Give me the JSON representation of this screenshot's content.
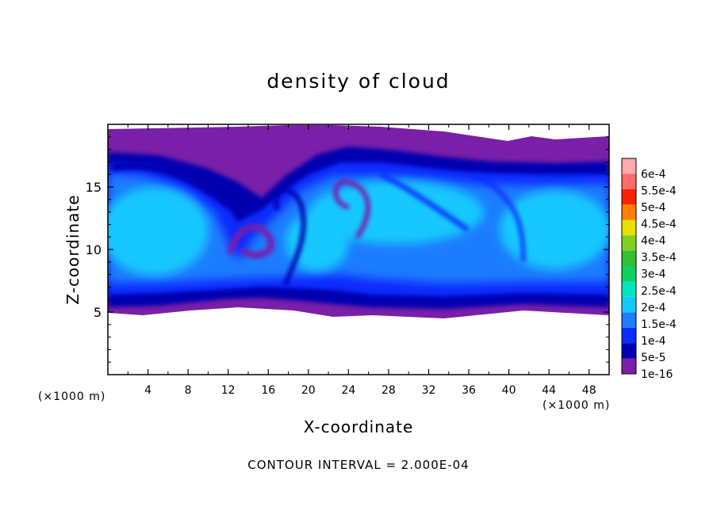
{
  "chart_data": {
    "type": "heatmap",
    "title": "density of cloud",
    "xlabel": "X-coordinate",
    "ylabel": "Z-coordinate",
    "x_unit": "(×1000 m)",
    "y_unit": "(×1000 m)",
    "xlim": [
      0,
      50
    ],
    "ylim": [
      0,
      20
    ],
    "x_ticks": [
      4,
      8,
      12,
      16,
      20,
      24,
      28,
      32,
      36,
      40,
      44,
      48
    ],
    "y_ticks": [
      5,
      10,
      15
    ],
    "footnote": "CONTOUR INTERVAL = 2.000E-04",
    "colorbar": {
      "levels": [
        "1e-16",
        "5e-5",
        "1e-4",
        "1.5e-4",
        "2e-4",
        "2.5e-4",
        "3e-4",
        "3.5e-4",
        "4e-4",
        "4.5e-4",
        "5e-4",
        "5.5e-4",
        "6e-4"
      ],
      "colors": [
        "#7a1fa8",
        "#0000b0",
        "#0a2cff",
        "#1e7cff",
        "#14c8ff",
        "#00e6c0",
        "#10d060",
        "#30c030",
        "#80d020",
        "#e8e000",
        "#ff8000",
        "#ff2000",
        "#ff6a6a",
        "#ffaaaa"
      ]
    },
    "cloud_region": {
      "x_range": [
        0,
        50
      ],
      "z_bottom": 5,
      "z_top": 19.3
    }
  }
}
